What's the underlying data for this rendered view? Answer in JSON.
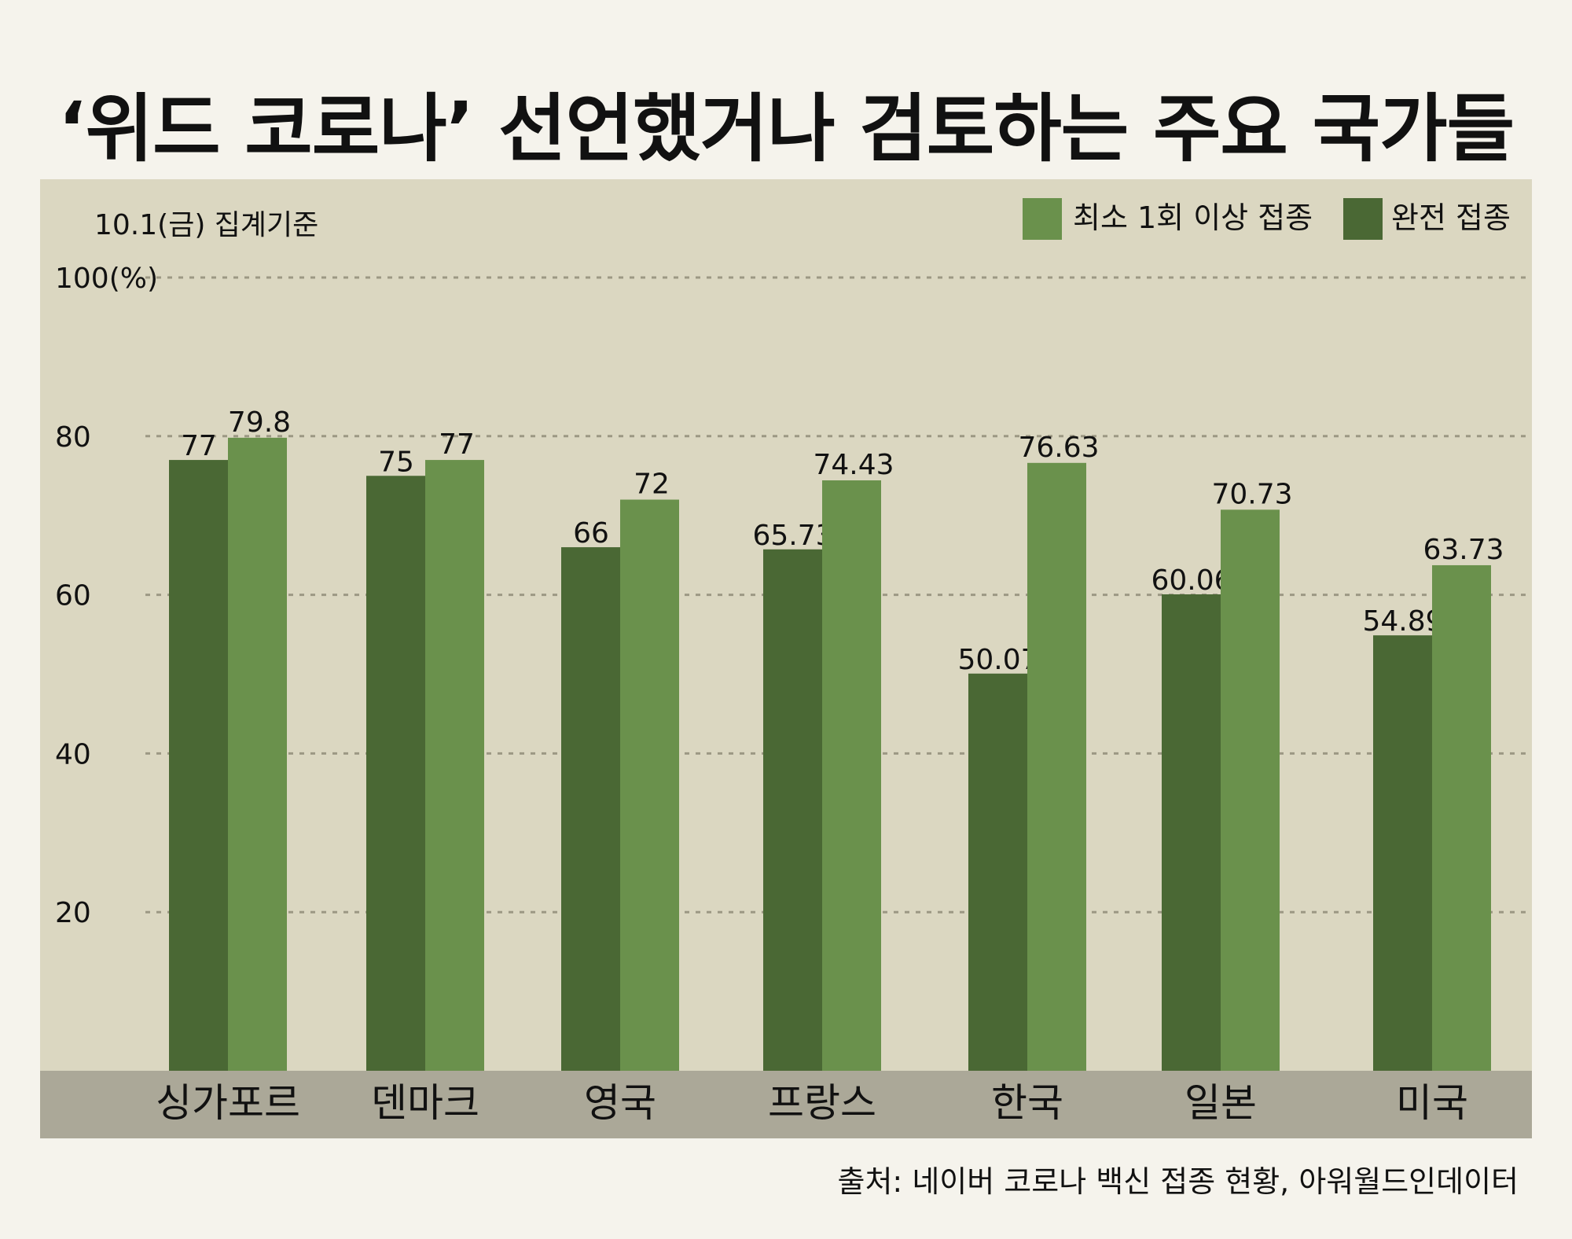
{
  "title": "‘위드 코로나’ 선언했거나 검토하는 주요 국가들",
  "source": "출처: 네이버 코로나 백신 접종 현황, 아워월드인데이터",
  "chart_data": {
    "type": "bar",
    "note": "10.1(금) 집계기준",
    "categories": [
      "싱가포르",
      "덴마크",
      "영국",
      "프랑스",
      "한국",
      "일본",
      "미국"
    ],
    "series": [
      {
        "name": "완전 접종",
        "color": "#4a6834",
        "values": [
          77,
          75,
          66,
          65.73,
          50.07,
          60.06,
          54.89
        ],
        "labels": [
          "77",
          "75",
          "66",
          "65.73",
          "50.07",
          "60.06",
          "54.89"
        ]
      },
      {
        "name": "최소 1회 이상 접종",
        "color": "#6a914c",
        "values": [
          79.8,
          77,
          72,
          74.43,
          76.63,
          70.73,
          63.73
        ],
        "labels": [
          "79.8",
          "77",
          "72",
          "74.43",
          "76.63",
          "70.73",
          "63.73"
        ]
      }
    ],
    "legend_order": [
      "최소 1회 이상 접종",
      "완전 접종"
    ],
    "legend_position": "top-right",
    "ylim": [
      0,
      100
    ],
    "yticks": [
      20,
      40,
      60,
      80,
      100
    ],
    "ytick_labels": [
      "20",
      "40",
      "60",
      "80",
      "100(%)"
    ],
    "grid": "dotted horizontal"
  }
}
